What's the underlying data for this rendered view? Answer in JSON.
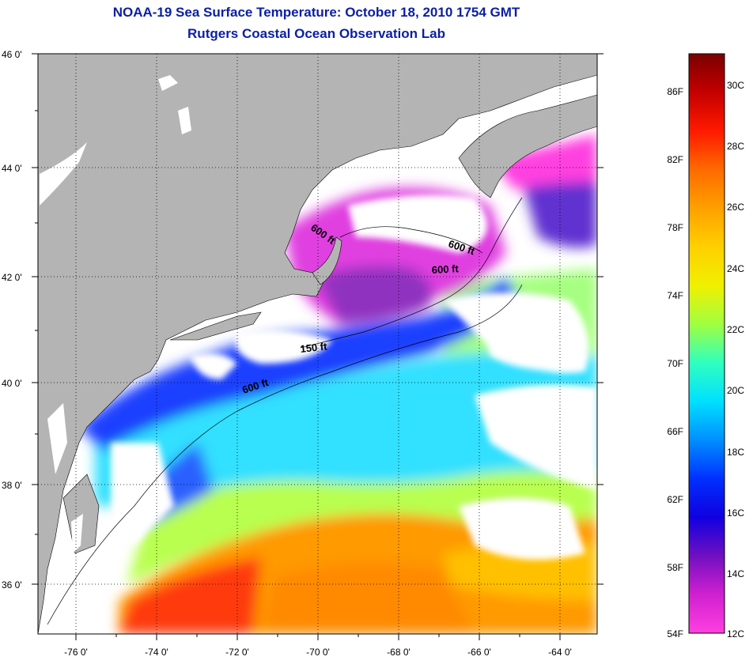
{
  "header": {
    "title": "NOAA-19 Sea Surface Temperature:  October 18, 2010 1754 GMT",
    "subtitle": "Rutgers Coastal Ocean Observation Lab"
  },
  "map": {
    "lat_labels": [
      "46 0'",
      "44 0'",
      "42 0'",
      "40 0'",
      "38 0'",
      "36 0'"
    ],
    "lon_labels": [
      "-76 0'",
      "-74 0'",
      "-72 0'",
      "-70 0'",
      "-68 0'",
      "-66 0'",
      "-64 0'"
    ],
    "isobath_labels": [
      "600 ft",
      "600 ft",
      "600 ft",
      "150 ft",
      "600 ft"
    ],
    "colors": {
      "land": "#b4b4b4",
      "cloud": "#ffffff",
      "grid": "#000000"
    }
  },
  "colorbar": {
    "fahrenheit_labels": [
      "86F",
      "82F",
      "78F",
      "74F",
      "70F",
      "66F",
      "62F",
      "58F",
      "54F"
    ],
    "celsius_labels": [
      "30C",
      "28C",
      "26C",
      "24C",
      "22C",
      "20C",
      "18C",
      "16C",
      "14C",
      "12C"
    ],
    "gradient_colors": [
      "#7a0000",
      "#c40000",
      "#ff1a00",
      "#ff6a00",
      "#ffa000",
      "#ffd000",
      "#f0f000",
      "#a0ff40",
      "#30ffc0",
      "#00e0ff",
      "#0090ff",
      "#0030ff",
      "#1000e0",
      "#7010c0",
      "#d020d0",
      "#ff40e0"
    ]
  }
}
